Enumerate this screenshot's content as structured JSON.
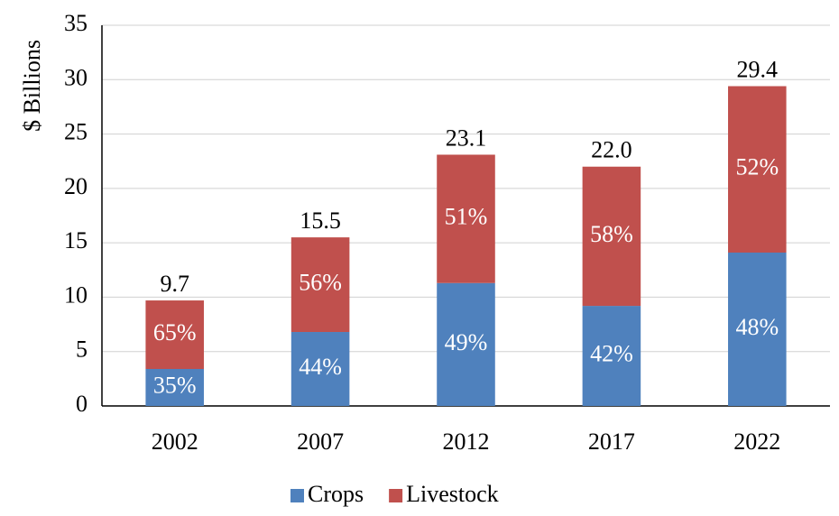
{
  "chart_data": {
    "type": "stacked_bar",
    "y_label": "$ Billions",
    "categories": [
      "2002",
      "2007",
      "2012",
      "2017",
      "2022"
    ],
    "series": [
      {
        "name": "Crops",
        "color": "#4f81bd",
        "values": [
          3.4,
          6.8,
          11.3,
          9.2,
          14.1
        ],
        "share_labels": [
          "35%",
          "44%",
          "49%",
          "42%",
          "48%"
        ]
      },
      {
        "name": "Livestock",
        "color": "#c0504d",
        "values": [
          6.3,
          8.7,
          11.8,
          12.8,
          15.3
        ],
        "share_labels": [
          "65%",
          "56%",
          "51%",
          "58%",
          "52%"
        ]
      }
    ],
    "totals": [
      9.7,
      15.5,
      23.1,
      22.0,
      29.4
    ],
    "total_labels": [
      "9.7",
      "15.5",
      "23.1",
      "22.0",
      "29.4"
    ],
    "ylim": [
      0,
      35
    ],
    "yticks": [
      0,
      5,
      10,
      15,
      20,
      25,
      30,
      35
    ],
    "grid": true,
    "legend": "bottom"
  }
}
